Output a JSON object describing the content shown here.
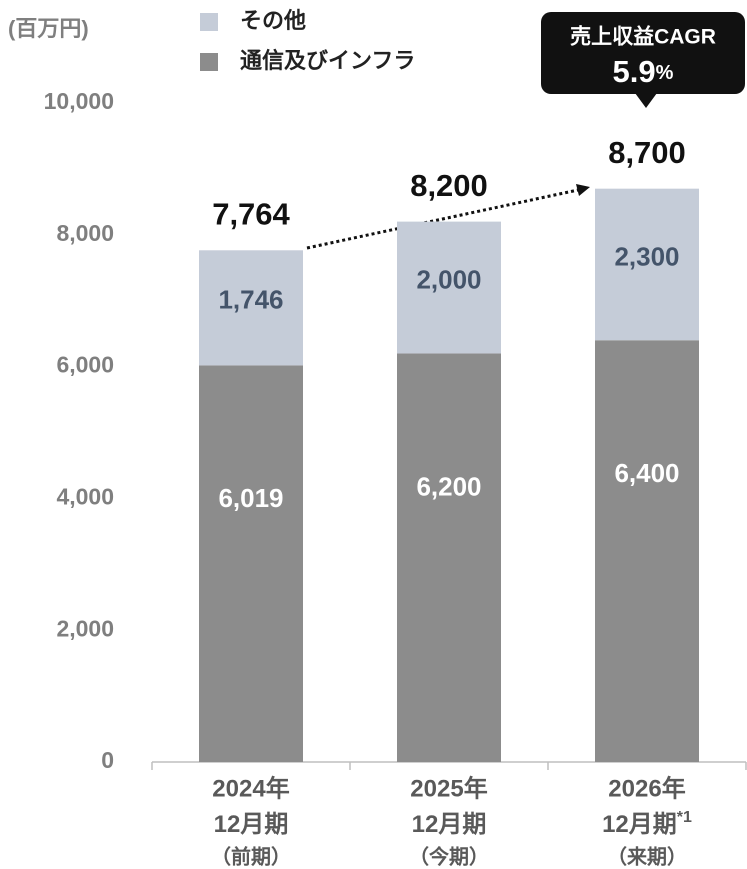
{
  "chart_data": {
    "type": "stacked_bar",
    "unit_label": "(百万円)",
    "categories": [
      {
        "year": "2024年",
        "period": "12月期",
        "label": "（前期）"
      },
      {
        "year": "2025年",
        "period": "12月期",
        "label": "（今期）"
      },
      {
        "year": "2026年",
        "period": "12月期",
        "note": "*1",
        "label": "（来期）"
      }
    ],
    "series": [
      {
        "name": "通信及びインフラ",
        "color": "#8c8c8c",
        "label_color": "#ffffff",
        "values": [
          6019,
          6200,
          6400
        ],
        "value_labels": [
          "6,019",
          "6,200",
          "6,400"
        ]
      },
      {
        "name": "その他",
        "color": "#c5ccd8",
        "label_color": "#44546a",
        "values": [
          1746,
          2000,
          2300
        ],
        "value_labels": [
          "1,746",
          "2,000",
          "2,300"
        ]
      }
    ],
    "totals": [
      7764,
      8200,
      8700
    ],
    "total_labels": [
      "7,764",
      "8,200",
      "8,700"
    ],
    "cagr": {
      "title": "売上収益CAGR",
      "value": 5.9,
      "unit": "%"
    },
    "ylim": [
      0,
      10000
    ],
    "yticks": [
      0,
      {
        "value": 2000,
        "label": "2,000"
      },
      {
        "value": 4000,
        "label": "4,000"
      },
      {
        "value": 6000,
        "label": "6,000"
      },
      {
        "value": 8000,
        "label": "8,000"
      },
      {
        "value": 10000,
        "label": "10,000"
      }
    ],
    "grid": false
  }
}
